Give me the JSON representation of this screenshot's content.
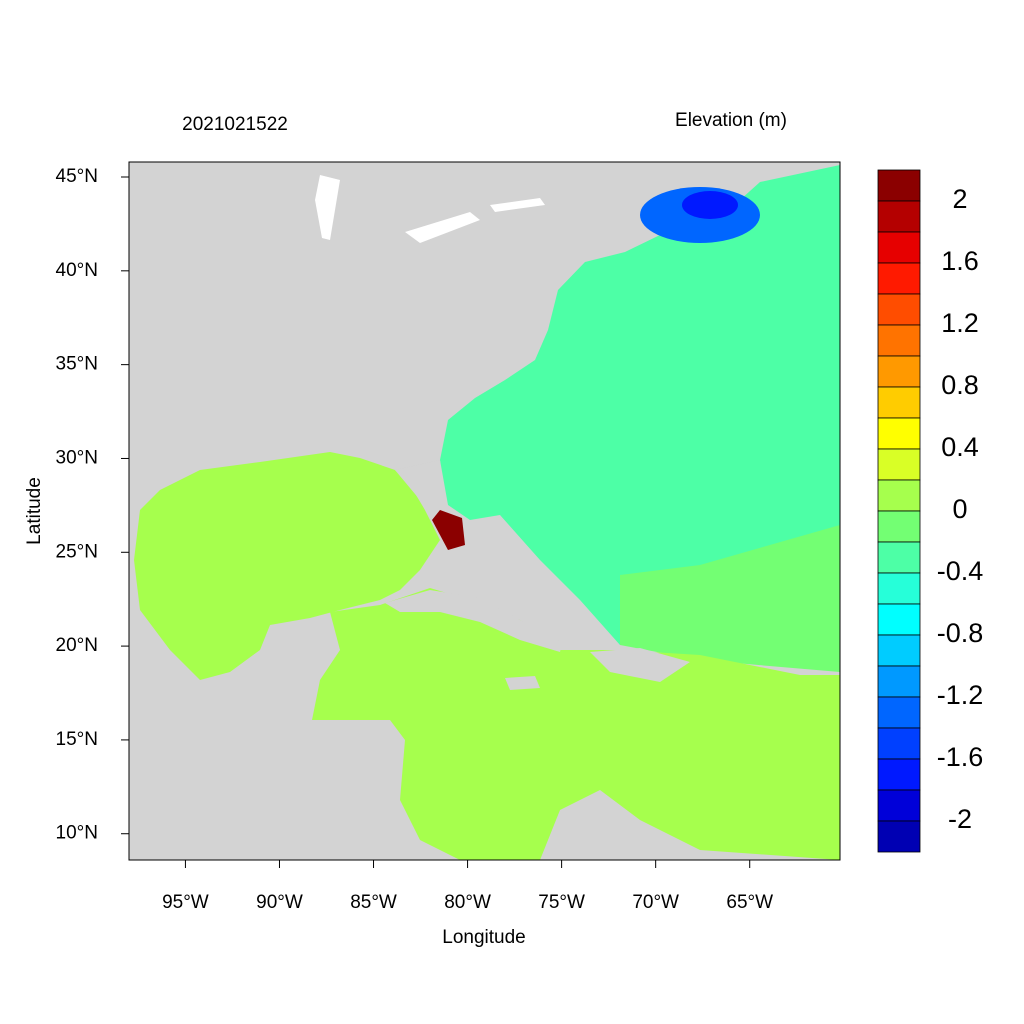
{
  "chart_data": {
    "type": "map",
    "title": "2021021522",
    "colorbar_title": "Elevation (m)",
    "xlabel": "Longitude",
    "ylabel": "Latitude",
    "xlim": [
      -98,
      -60.2
    ],
    "ylim": [
      8.6,
      45.8
    ],
    "xticks": [
      {
        "value": -95,
        "label": "95°W"
      },
      {
        "value": -90,
        "label": "90°W"
      },
      {
        "value": -85,
        "label": "85°W"
      },
      {
        "value": -80,
        "label": "80°W"
      },
      {
        "value": -75,
        "label": "75°W"
      },
      {
        "value": -70,
        "label": "70°W"
      },
      {
        "value": -65,
        "label": "65°W"
      }
    ],
    "yticks": [
      {
        "value": 10,
        "label": "10°N"
      },
      {
        "value": 15,
        "label": "15°N"
      },
      {
        "value": 20,
        "label": "20°N"
      },
      {
        "value": 25,
        "label": "25°N"
      },
      {
        "value": 30,
        "label": "30°N"
      },
      {
        "value": 35,
        "label": "35°N"
      },
      {
        "value": 40,
        "label": "40°N"
      },
      {
        "value": 45,
        "label": "45°N"
      }
    ],
    "colorbar": {
      "levels": [
        2,
        1.8,
        1.6,
        1.4,
        1.2,
        1,
        0.8,
        0.6,
        0.4,
        0.2,
        0,
        -0.2,
        -0.4,
        -0.6,
        -0.8,
        -1,
        -1.2,
        -1.4,
        -1.6,
        -1.8,
        -2
      ],
      "colors": [
        "#8b0000",
        "#b40000",
        "#e60000",
        "#ff1a00",
        "#ff4d00",
        "#ff7300",
        "#ff9900",
        "#ffcc00",
        "#ffff00",
        "#d9ff26",
        "#a6ff4d",
        "#73ff73",
        "#4dffa6",
        "#26ffd9",
        "#00ffff",
        "#00ccff",
        "#0099ff",
        "#0066ff",
        "#0040ff",
        "#0019ff",
        "#0000d9",
        "#0000b3"
      ],
      "ticks": [
        2,
        1.6,
        1.2,
        0.8,
        0.4,
        0,
        -0.4,
        -0.8,
        -1.2,
        -1.6,
        -2
      ]
    }
  }
}
